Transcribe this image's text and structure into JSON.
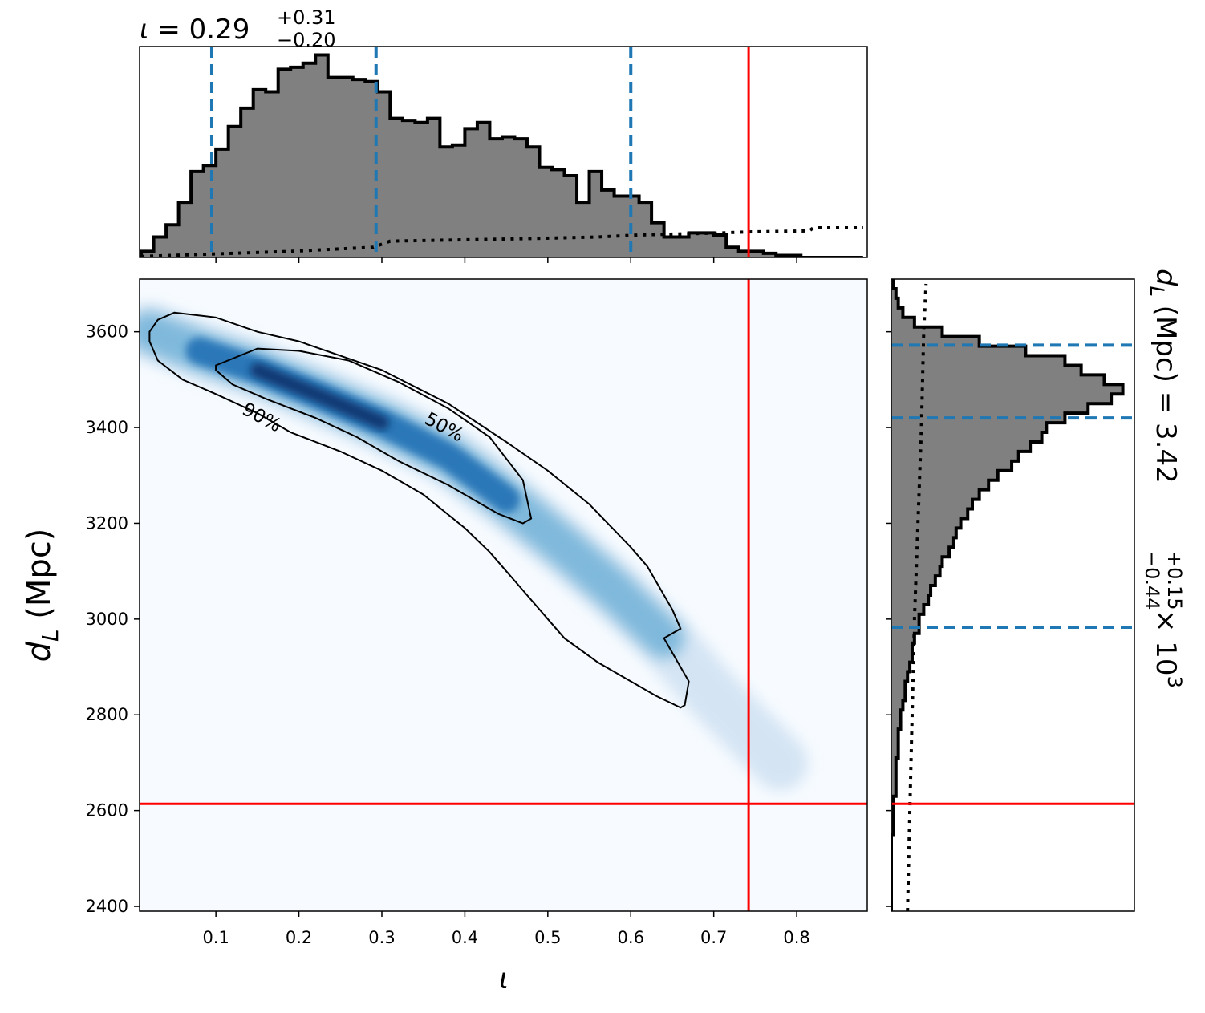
{
  "chart_data": [
    {
      "type": "histogram",
      "panel": "top-marginal",
      "title": "ι = 0.29",
      "title_parts": {
        "symbol": "ι",
        "eq": " = ",
        "median": "0.29",
        "plus": "+0.31",
        "minus": "−0.20"
      },
      "bins_x": [
        0.01,
        0.025,
        0.04,
        0.055,
        0.07,
        0.085,
        0.1,
        0.115,
        0.13,
        0.145,
        0.16,
        0.175,
        0.19,
        0.205,
        0.22,
        0.235,
        0.25,
        0.265,
        0.28,
        0.295,
        0.31,
        0.325,
        0.34,
        0.355,
        0.37,
        0.385,
        0.4,
        0.415,
        0.43,
        0.445,
        0.46,
        0.475,
        0.49,
        0.505,
        0.52,
        0.535,
        0.55,
        0.565,
        0.58,
        0.595,
        0.61,
        0.625,
        0.64,
        0.655,
        0.67,
        0.685,
        0.7,
        0.715,
        0.73,
        0.745,
        0.76,
        0.775,
        0.79,
        0.805,
        0.82,
        0.835,
        0.85,
        0.865,
        0.88
      ],
      "counts": [
        0.03,
        0.1,
        0.16,
        0.27,
        0.42,
        0.45,
        0.53,
        0.64,
        0.73,
        0.82,
        0.81,
        0.92,
        0.93,
        0.95,
        0.99,
        0.88,
        0.88,
        0.87,
        0.86,
        0.81,
        0.68,
        0.67,
        0.66,
        0.68,
        0.54,
        0.55,
        0.63,
        0.66,
        0.58,
        0.59,
        0.58,
        0.54,
        0.44,
        0.43,
        0.4,
        0.27,
        0.42,
        0.33,
        0.3,
        0.3,
        0.27,
        0.17,
        0.1,
        0.1,
        0.12,
        0.12,
        0.11,
        0.05,
        0.03,
        0.03,
        0.02,
        0.01,
        0.01,
        0.0,
        0.0,
        0.0,
        0.0,
        0.0
      ],
      "prior_points": [
        [
          0.01,
          0.005
        ],
        [
          0.12,
          0.02
        ],
        [
          0.19,
          0.03
        ],
        [
          0.29,
          0.05
        ],
        [
          0.31,
          0.08
        ],
        [
          0.45,
          0.09
        ],
        [
          0.56,
          0.1
        ],
        [
          0.61,
          0.11
        ],
        [
          0.71,
          0.12
        ],
        [
          0.74,
          0.125
        ],
        [
          0.815,
          0.13
        ],
        [
          0.82,
          0.145
        ],
        [
          0.88,
          0.145
        ]
      ],
      "vlines_dashed": [
        0.095,
        0.293,
        0.6
      ],
      "vline_true": 0.742,
      "xlim": [
        0.008,
        0.885
      ],
      "ylim": [
        0,
        1.0
      ]
    },
    {
      "type": "heatmap",
      "panel": "joint",
      "xlabel": "ι",
      "ylabel": "d_L (Mpc)",
      "xlim": [
        0.008,
        0.885
      ],
      "ylim": [
        2390,
        3710
      ],
      "xticks": [
        "0.1",
        "0.2",
        "0.3",
        "0.4",
        "0.5",
        "0.6",
        "0.7",
        "0.8"
      ],
      "yticks": [
        "2400",
        "2600",
        "2800",
        "3000",
        "3200",
        "3400",
        "3600"
      ],
      "density_ridge": [
        [
          0.02,
          3600
        ],
        [
          0.08,
          3560
        ],
        [
          0.15,
          3520
        ],
        [
          0.22,
          3470
        ],
        [
          0.3,
          3410
        ],
        [
          0.38,
          3340
        ],
        [
          0.45,
          3250
        ],
        [
          0.52,
          3150
        ],
        [
          0.58,
          3060
        ],
        [
          0.64,
          2960
        ],
        [
          0.7,
          2840
        ],
        [
          0.78,
          2700
        ]
      ],
      "contour_50": [
        [
          0.1,
          3530
        ],
        [
          0.15,
          3565
        ],
        [
          0.2,
          3560
        ],
        [
          0.26,
          3540
        ],
        [
          0.32,
          3495
        ],
        [
          0.38,
          3440
        ],
        [
          0.43,
          3380
        ],
        [
          0.47,
          3290
        ],
        [
          0.48,
          3210
        ],
        [
          0.47,
          3200
        ],
        [
          0.44,
          3220
        ],
        [
          0.38,
          3280
        ],
        [
          0.32,
          3330
        ],
        [
          0.27,
          3380
        ],
        [
          0.22,
          3420
        ],
        [
          0.16,
          3460
        ],
        [
          0.12,
          3490
        ],
        [
          0.1,
          3520
        ]
      ],
      "contour_90": [
        [
          0.02,
          3600
        ],
        [
          0.03,
          3625
        ],
        [
          0.05,
          3640
        ],
        [
          0.1,
          3630
        ],
        [
          0.15,
          3600
        ],
        [
          0.2,
          3580
        ],
        [
          0.3,
          3520
        ],
        [
          0.38,
          3450
        ],
        [
          0.45,
          3370
        ],
        [
          0.5,
          3310
        ],
        [
          0.55,
          3240
        ],
        [
          0.6,
          3150
        ],
        [
          0.62,
          3110
        ],
        [
          0.65,
          3020
        ],
        [
          0.66,
          2980
        ],
        [
          0.64,
          2960
        ],
        [
          0.67,
          2870
        ],
        [
          0.665,
          2820
        ],
        [
          0.66,
          2815
        ],
        [
          0.63,
          2840
        ],
        [
          0.59,
          2880
        ],
        [
          0.56,
          2910
        ],
        [
          0.52,
          2960
        ],
        [
          0.5,
          3000
        ],
        [
          0.47,
          3060
        ],
        [
          0.43,
          3140
        ],
        [
          0.4,
          3190
        ],
        [
          0.35,
          3260
        ],
        [
          0.3,
          3310
        ],
        [
          0.25,
          3350
        ],
        [
          0.19,
          3390
        ],
        [
          0.15,
          3430
        ],
        [
          0.1,
          3470
        ],
        [
          0.06,
          3500
        ],
        [
          0.03,
          3540
        ],
        [
          0.02,
          3580
        ]
      ],
      "contour_labels": [
        {
          "text": "50%",
          "x": 0.35,
          "y": 3410
        },
        {
          "text": "90%",
          "x": 0.13,
          "y": 3430
        }
      ],
      "vline_true": 0.742,
      "hline_true": 2614
    },
    {
      "type": "histogram",
      "orientation": "horizontal",
      "panel": "right-marginal",
      "title": "d_L (Mpc) = 3.42 × 10³",
      "title_parts": {
        "symbol_main": "d",
        "symbol_sub": "L",
        "unit": " (Mpc) = ",
        "median": "3.42",
        "plus": "+0.15",
        "minus": "−0.44",
        "times": " × 10",
        "exp": "3"
      },
      "bins_y": [
        2390,
        2410,
        2430,
        2450,
        2470,
        2490,
        2510,
        2530,
        2550,
        2570,
        2590,
        2610,
        2630,
        2650,
        2670,
        2690,
        2710,
        2730,
        2750,
        2770,
        2790,
        2810,
        2830,
        2850,
        2870,
        2890,
        2910,
        2930,
        2950,
        2970,
        2990,
        3010,
        3030,
        3050,
        3070,
        3090,
        3110,
        3130,
        3150,
        3170,
        3190,
        3210,
        3230,
        3250,
        3270,
        3290,
        3310,
        3330,
        3350,
        3370,
        3390,
        3410,
        3430,
        3450,
        3470,
        3490,
        3510,
        3530,
        3550,
        3570,
        3590,
        3610,
        3630,
        3650,
        3670,
        3690,
        3710
      ],
      "counts": [
        0.0,
        0.0,
        0.0,
        0.0,
        0.0,
        0.0,
        0.0,
        0.0,
        0.01,
        0.01,
        0.01,
        0.01,
        0.02,
        0.02,
        0.02,
        0.02,
        0.03,
        0.03,
        0.03,
        0.04,
        0.04,
        0.05,
        0.06,
        0.06,
        0.07,
        0.08,
        0.09,
        0.09,
        0.1,
        0.12,
        0.12,
        0.14,
        0.16,
        0.17,
        0.19,
        0.21,
        0.22,
        0.25,
        0.27,
        0.28,
        0.3,
        0.33,
        0.35,
        0.38,
        0.42,
        0.46,
        0.52,
        0.55,
        0.6,
        0.65,
        0.67,
        0.75,
        0.85,
        0.95,
        1.0,
        0.92,
        0.82,
        0.75,
        0.58,
        0.38,
        0.22,
        0.1,
        0.05,
        0.03,
        0.02,
        0.01
      ],
      "prior_points": [
        [
          2390,
          0.07
        ],
        [
          2600,
          0.08
        ],
        [
          2800,
          0.09
        ],
        [
          3000,
          0.1
        ],
        [
          3200,
          0.115
        ],
        [
          3400,
          0.13
        ],
        [
          3600,
          0.14
        ],
        [
          3700,
          0.15
        ]
      ],
      "hlines_dashed": [
        2983,
        3420,
        3572
      ],
      "hline_true": 2614,
      "ylim": [
        2390,
        3710
      ],
      "xlim": [
        0,
        1.05
      ]
    }
  ],
  "colors": {
    "hist_fill": "#808080",
    "hist_edge": "#000000",
    "quantile_lines": "#1f77b4",
    "truth_lines": "#ff0000",
    "density_low": "#f7fbff",
    "density_high": "#08306b",
    "contour": "#000000"
  }
}
